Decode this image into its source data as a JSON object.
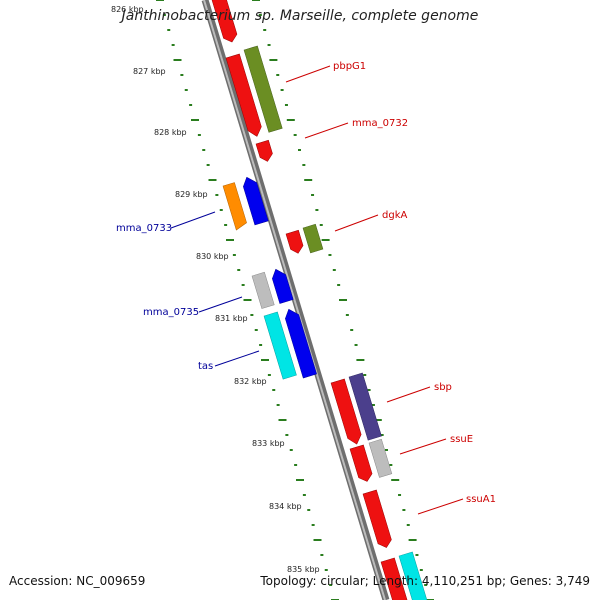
{
  "title": "Janthinobacterium sp. Marseille, complete genome",
  "accession_text": "Accession: NC_009659",
  "topology_text": "Topology: circular; Length: 4,110,251 bp; Genes: 3,749",
  "tick_labels": [
    "826 kbp",
    "827 kbp",
    "828 kbp",
    "829 kbp",
    "830 kbp",
    "831 kbp",
    "832 kbp",
    "833 kbp",
    "834 kbp",
    "835 kbp"
  ],
  "gene_labels": [
    {
      "text": "pbpG1",
      "color": "#cc0000"
    },
    {
      "text": "mma_0732",
      "color": "#cc0000"
    },
    {
      "text": "dgkA",
      "color": "#cc0000"
    },
    {
      "text": "mma_0733",
      "color": "#000099"
    },
    {
      "text": "mma_0735",
      "color": "#000099"
    },
    {
      "text": "tas",
      "color": "#000099"
    },
    {
      "text": "sbp",
      "color": "#cc0000"
    },
    {
      "text": "ssuE",
      "color": "#cc0000"
    },
    {
      "text": "ssuA1",
      "color": "#cc0000"
    }
  ],
  "colors": {
    "backbone": "#8c8c8c",
    "tick": "#2a7d1e",
    "red": "#ee1111",
    "olive": "#6b8e23",
    "orange": "#ff8c00",
    "blue": "#0000ee",
    "gray": "#bdbdbd",
    "cyan": "#00e5e5",
    "purple": "#4b3f8c"
  }
}
